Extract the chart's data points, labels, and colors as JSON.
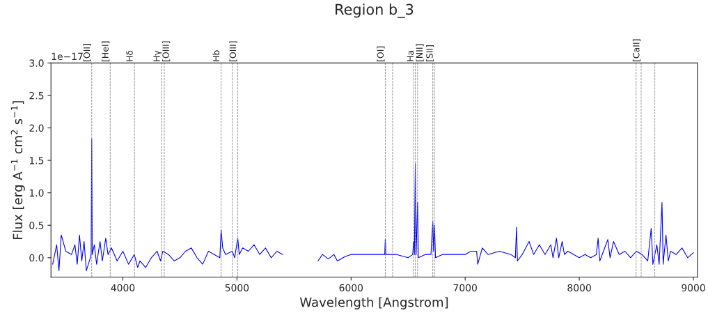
{
  "chart_data": {
    "type": "line",
    "title": "Region b_3",
    "xlabel": "Wavelength [Angstrom]",
    "ylabel": "Flux [erg A$^{−1}$ cm$^{2}$ s$^{−1}$]",
    "annotations": [
      "1e−17"
    ],
    "x": [
      3385,
      3420,
      3440,
      3460,
      3500,
      3550,
      3580,
      3600,
      3620,
      3640,
      3660,
      3680,
      3715,
      3722,
      3727,
      3732,
      3750,
      3770,
      3800,
      3820,
      3850,
      3870,
      3900,
      3950,
      4000,
      4050,
      4100,
      4130,
      4150,
      4200,
      4250,
      4300,
      4330,
      4350,
      4400,
      4450,
      4500,
      4550,
      4600,
      4650,
      4700,
      4750,
      4800,
      4850,
      4861,
      4875,
      4900,
      4959,
      4980,
      5007,
      5020,
      5050,
      5100,
      5150,
      5200,
      5250,
      5300,
      5350,
      5400,
      5550,
      5710,
      5750,
      5800,
      5850,
      5880,
      5950,
      6000,
      6100,
      6200,
      6295,
      6300,
      6305,
      6400,
      6500,
      6540,
      6548,
      6555,
      6563,
      6570,
      6583,
      6590,
      6650,
      6700,
      6716,
      6723,
      6731,
      6740,
      6800,
      6900,
      7000,
      7050,
      7100,
      7110,
      7150,
      7200,
      7300,
      7400,
      7440,
      7450,
      7458,
      7500,
      7560,
      7600,
      7650,
      7700,
      7750,
      7770,
      7800,
      7820,
      7850,
      7870,
      7900,
      8000,
      8050,
      8100,
      8150,
      8165,
      8180,
      8250,
      8270,
      8300,
      8350,
      8400,
      8450,
      8500,
      8550,
      8600,
      8630,
      8645,
      8680,
      8700,
      8725,
      8735,
      8760,
      8780,
      8800,
      8850,
      8900,
      8950,
      9000
    ],
    "series": [
      {
        "color": "#0000ff",
        "values": [
          -0.1,
          0.2,
          -0.2,
          0.35,
          0.1,
          0.05,
          0.2,
          -0.1,
          0.35,
          -0.05,
          0.25,
          -0.2,
          0.0,
          0.05,
          1.83,
          0.05,
          0.2,
          -0.1,
          0.25,
          -0.05,
          0.3,
          0.05,
          0.15,
          -0.05,
          0.1,
          -0.1,
          0.05,
          -0.15,
          -0.05,
          -0.15,
          0.0,
          0.1,
          -0.05,
          0.1,
          0.05,
          -0.05,
          0.0,
          0.1,
          0.15,
          0.0,
          -0.1,
          0.1,
          0.05,
          0.0,
          0.43,
          0.15,
          0.05,
          0.1,
          0.0,
          0.3,
          0.05,
          0.15,
          0.1,
          0.2,
          0.05,
          0.15,
          0.0,
          0.1,
          0.05,
          null,
          -0.05,
          0.05,
          -0.02,
          0.05,
          -0.05,
          0.02,
          0.05,
          0.05,
          0.05,
          0.05,
          0.29,
          0.05,
          0.05,
          0.0,
          0.05,
          0.25,
          0.05,
          1.45,
          0.05,
          0.85,
          0.0,
          0.05,
          0.05,
          0.55,
          0.1,
          0.5,
          0.0,
          0.05,
          0.05,
          0.05,
          0.1,
          0.1,
          -0.1,
          0.15,
          0.05,
          0.1,
          0.05,
          0.0,
          0.47,
          -0.05,
          0.05,
          0.25,
          0.05,
          0.2,
          0.05,
          0.2,
          0.0,
          0.3,
          0.0,
          0.25,
          0.05,
          0.1,
          0.0,
          0.05,
          0.0,
          0.05,
          0.3,
          -0.05,
          0.28,
          0.0,
          0.25,
          0.05,
          0.1,
          0.0,
          0.1,
          0.05,
          -0.05,
          0.45,
          -0.1,
          0.2,
          -0.1,
          0.85,
          -0.1,
          0.35,
          -0.05,
          0.1,
          0.05,
          0.15,
          0.0,
          0.08
        ]
      }
    ],
    "xlim": [
      3370,
      9035
    ],
    "ylim": [
      -0.3,
      3.0
    ],
    "xticks": [
      4000,
      5000,
      6000,
      7000,
      8000,
      9000
    ],
    "yticks": [
      {
        "value": 0,
        "label": "0.0"
      },
      {
        "value": 0.5,
        "label": "0.5"
      },
      {
        "value": 1,
        "label": "1.0"
      },
      {
        "value": 1.5,
        "label": "1.5"
      },
      {
        "value": 2,
        "label": "2.0"
      },
      {
        "value": 2.5,
        "label": "2.5"
      },
      {
        "value": 3,
        "label": "3.0"
      }
    ],
    "grid": false,
    "legend": false,
    "line_style": "solid",
    "marker": "none",
    "ref_lines": [
      {
        "axis": "x",
        "value": 3727,
        "label": "[OII]",
        "color": "#808080",
        "line_style": "dashed"
      },
      {
        "axis": "x",
        "value": 3889,
        "label": "[HeI]",
        "color": "#808080",
        "line_style": "dashed"
      },
      {
        "axis": "x",
        "value": 4102,
        "label": "Hδ",
        "color": "#808080",
        "line_style": "dashed"
      },
      {
        "axis": "x",
        "value": 4340,
        "label": "Hγ",
        "color": "#808080",
        "line_style": "dashed"
      },
      {
        "axis": "x",
        "value": 4363,
        "label": "[OIII]",
        "color": "#808080",
        "line_style": "dashed"
      },
      {
        "axis": "x",
        "value": 4861,
        "label": "Hb",
        "color": "#808080",
        "line_style": "dashed"
      },
      {
        "axis": "x",
        "value": 4959,
        "label": null,
        "color": "#808080",
        "line_style": "dashed"
      },
      {
        "axis": "x",
        "value": 5007,
        "label": "[OIII]",
        "color": "#808080",
        "line_style": "dashed"
      },
      {
        "axis": "x",
        "value": 6300,
        "label": "[OI]",
        "color": "#808080",
        "line_style": "dashed"
      },
      {
        "axis": "x",
        "value": 6364,
        "label": null,
        "color": "#808080",
        "line_style": "dashed"
      },
      {
        "axis": "x",
        "value": 6548,
        "label": null,
        "color": "#808080",
        "line_style": "dashed"
      },
      {
        "axis": "x",
        "value": 6563,
        "label": "Ha",
        "color": "#808080",
        "line_style": "dashed"
      },
      {
        "axis": "x",
        "value": 6583,
        "label": "[NII]",
        "color": "#808080",
        "line_style": "dashed"
      },
      {
        "axis": "x",
        "value": 6716,
        "label": null,
        "color": "#808080",
        "line_style": "dashed"
      },
      {
        "axis": "x",
        "value": 6731,
        "label": "[SII]",
        "color": "#808080",
        "line_style": "dashed"
      },
      {
        "axis": "x",
        "value": 8498,
        "label": null,
        "color": "#808080",
        "line_style": "dashed"
      },
      {
        "axis": "x",
        "value": 8542,
        "label": "[CaII]",
        "color": "#808080",
        "line_style": "dashed"
      },
      {
        "axis": "x",
        "value": 8662,
        "label": null,
        "color": "#808080",
        "line_style": "dashed"
      }
    ]
  }
}
